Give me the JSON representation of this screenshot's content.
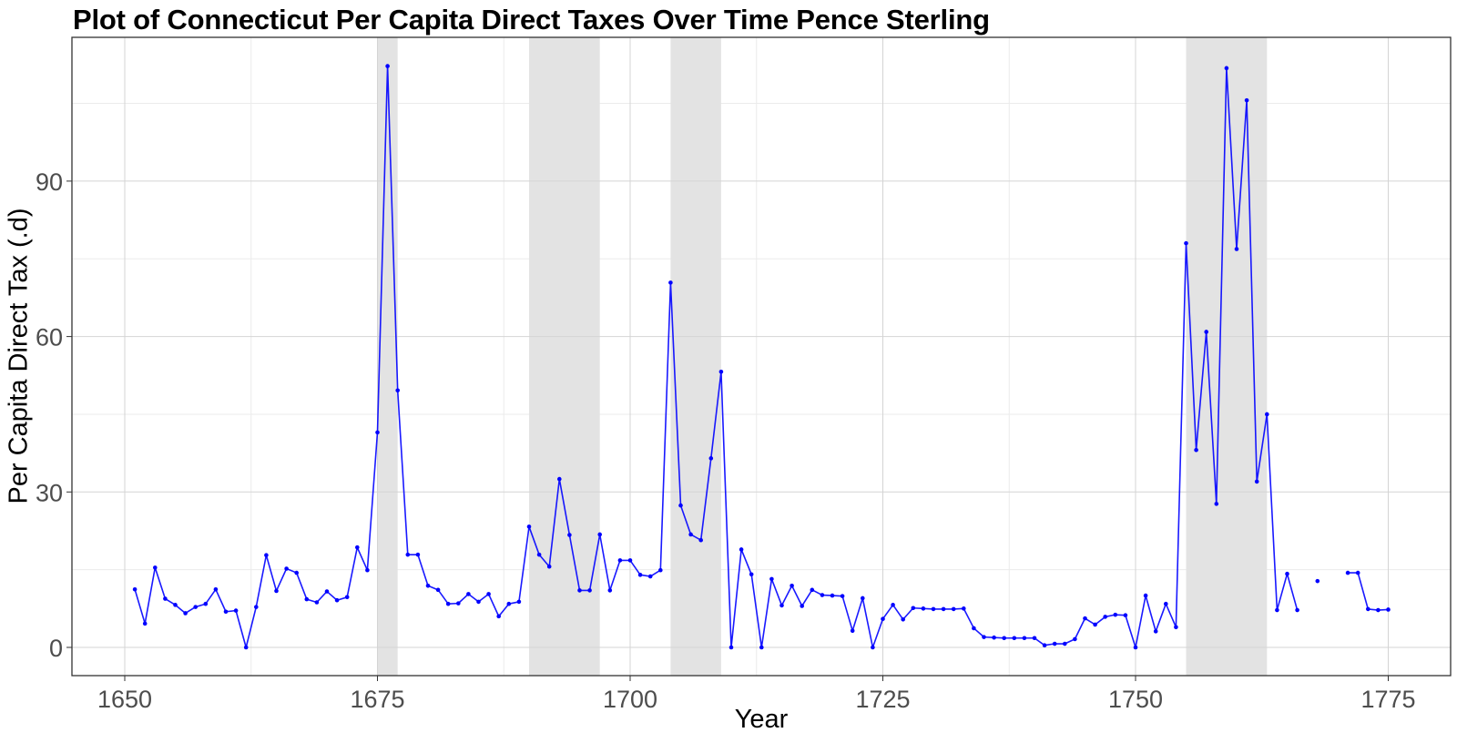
{
  "chart_data": {
    "type": "line",
    "title": "Plot of Connecticut Per Capita Direct Taxes Over Time Pence Sterling",
    "xlabel": "Year",
    "ylabel": "Per Capita Direct Tax (.d)",
    "xlim": [
      1645,
      1778
    ],
    "ylim": [
      -5,
      118
    ],
    "x_ticks": [
      1650,
      1675,
      1700,
      1725,
      1750,
      1775
    ],
    "y_ticks": [
      0,
      30,
      60,
      90
    ],
    "grid": true,
    "legend": null,
    "line_color": "#0000ff",
    "shaded_color": "#e3e3e3",
    "shaded_periods": [
      {
        "start": 1675,
        "end": 1677
      },
      {
        "start": 1690,
        "end": 1697
      },
      {
        "start": 1704,
        "end": 1709
      },
      {
        "start": 1755,
        "end": 1763
      }
    ],
    "series": [
      {
        "name": "Per Capita Direct Tax",
        "points": [
          [
            1651,
            11.2
          ],
          [
            1652,
            4.6
          ],
          [
            1653,
            15.4
          ],
          [
            1654,
            9.4
          ],
          [
            1655,
            8.2
          ],
          [
            1656,
            6.6
          ],
          [
            1657,
            7.8
          ],
          [
            1658,
            8.4
          ],
          [
            1659,
            11.2
          ],
          [
            1660,
            6.9
          ],
          [
            1661,
            7.1
          ],
          [
            1662,
            0
          ],
          [
            1663,
            7.8
          ],
          [
            1664,
            17.8
          ],
          [
            1665,
            10.9
          ],
          [
            1666,
            15.2
          ],
          [
            1667,
            14.4
          ],
          [
            1668,
            9.3
          ],
          [
            1669,
            8.7
          ],
          [
            1670,
            10.8
          ],
          [
            1671,
            9.1
          ],
          [
            1672,
            9.7
          ],
          [
            1673,
            19.3
          ],
          [
            1674,
            14.9
          ],
          [
            1675,
            41.5
          ],
          [
            1676,
            112.2
          ],
          [
            1677,
            49.6
          ],
          [
            1678,
            17.9
          ],
          [
            1679,
            17.9
          ],
          [
            1680,
            11.9
          ],
          [
            1681,
            11.1
          ],
          [
            1682,
            8.4
          ],
          [
            1683,
            8.5
          ],
          [
            1684,
            10.3
          ],
          [
            1685,
            8.8
          ],
          [
            1686,
            10.3
          ],
          [
            1687,
            6.0
          ],
          [
            1688,
            8.4
          ],
          [
            1689,
            8.8
          ],
          [
            1690,
            23.3
          ],
          [
            1691,
            17.9
          ],
          [
            1692,
            15.6
          ],
          [
            1693,
            32.5
          ],
          [
            1694,
            21.7
          ],
          [
            1695,
            11.0
          ],
          [
            1696,
            11.0
          ],
          [
            1697,
            21.8
          ],
          [
            1698,
            11.0
          ],
          [
            1699,
            16.8
          ],
          [
            1700,
            16.8
          ],
          [
            1701,
            14.0
          ],
          [
            1702,
            13.7
          ],
          [
            1703,
            14.9
          ],
          [
            1704,
            70.4
          ],
          [
            1705,
            27.4
          ],
          [
            1706,
            21.8
          ],
          [
            1707,
            20.7
          ],
          [
            1708,
            36.5
          ],
          [
            1709,
            53.2
          ],
          [
            1710,
            0
          ],
          [
            1711,
            18.9
          ],
          [
            1712,
            14.1
          ],
          [
            1713,
            0
          ],
          [
            1714,
            13.2
          ],
          [
            1715,
            8.1
          ],
          [
            1716,
            11.9
          ],
          [
            1717,
            8.0
          ],
          [
            1718,
            11.1
          ],
          [
            1719,
            10.1
          ],
          [
            1720,
            10.0
          ],
          [
            1721,
            9.9
          ],
          [
            1722,
            3.2
          ],
          [
            1723,
            9.5
          ],
          [
            1724,
            0
          ],
          [
            1725,
            5.5
          ],
          [
            1726,
            8.2
          ],
          [
            1727,
            5.4
          ],
          [
            1728,
            7.6
          ],
          [
            1729,
            7.5
          ],
          [
            1730,
            7.4
          ],
          [
            1731,
            7.4
          ],
          [
            1732,
            7.4
          ],
          [
            1733,
            7.5
          ],
          [
            1734,
            3.7
          ],
          [
            1735,
            2.0
          ],
          [
            1736,
            1.9
          ],
          [
            1737,
            1.8
          ],
          [
            1738,
            1.8
          ],
          [
            1739,
            1.8
          ],
          [
            1740,
            1.8
          ],
          [
            1741,
            0.4
          ],
          [
            1742,
            0.7
          ],
          [
            1743,
            0.7
          ],
          [
            1744,
            1.6
          ],
          [
            1745,
            5.6
          ],
          [
            1746,
            4.4
          ],
          [
            1747,
            5.9
          ],
          [
            1748,
            6.3
          ],
          [
            1749,
            6.2
          ],
          [
            1750,
            0
          ],
          [
            1751,
            10.0
          ],
          [
            1752,
            3.1
          ],
          [
            1753,
            8.4
          ],
          [
            1754,
            3.9
          ],
          [
            1755,
            78.0
          ],
          [
            1756,
            38.1
          ],
          [
            1757,
            60.9
          ],
          [
            1758,
            27.7
          ],
          [
            1759,
            111.8
          ],
          [
            1760,
            76.9
          ],
          [
            1761,
            105.6
          ],
          [
            1762,
            32.0
          ],
          [
            1763,
            45.0
          ],
          [
            1764,
            7.2
          ],
          [
            1765,
            14.2
          ],
          [
            1766,
            7.2
          ],
          [
            1767,
            null
          ],
          [
            1768,
            12.8
          ],
          [
            1769,
            null
          ],
          [
            1770,
            null
          ],
          [
            1771,
            14.4
          ],
          [
            1772,
            14.4
          ],
          [
            1773,
            7.4
          ],
          [
            1774,
            7.2
          ],
          [
            1775,
            7.3
          ]
        ]
      }
    ]
  }
}
